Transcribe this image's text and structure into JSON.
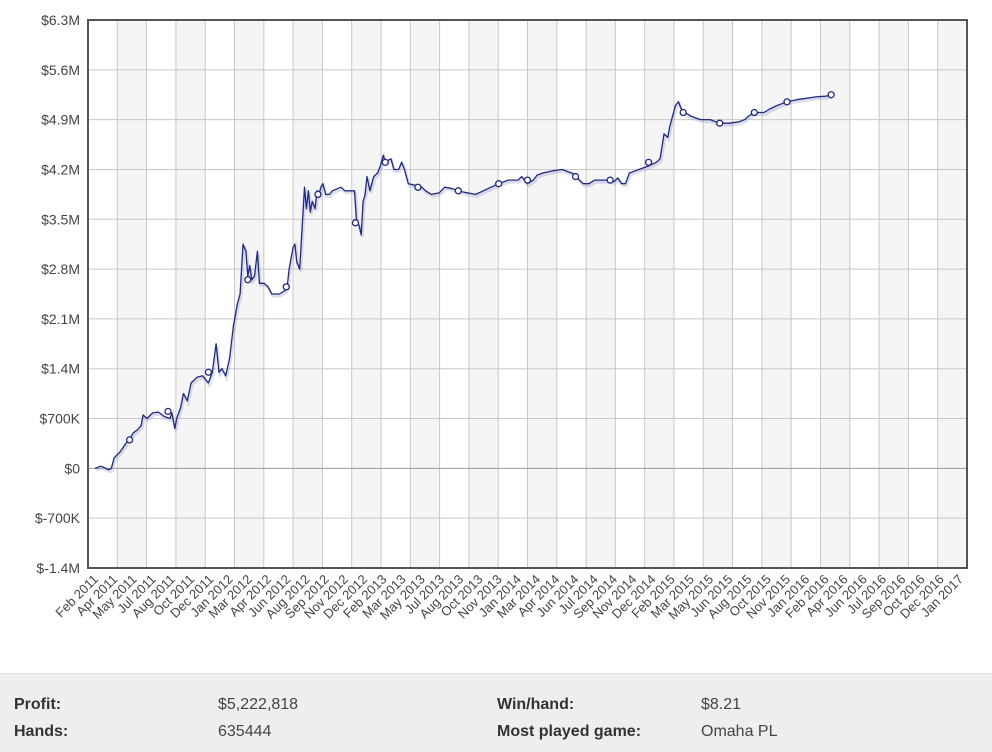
{
  "chart_data": {
    "type": "line",
    "title": "",
    "xlabel": "",
    "ylabel": "",
    "ylim": [
      -1400000,
      6300000
    ],
    "y_ticks": [
      {
        "value": -1400000,
        "label": "$-1.4M"
      },
      {
        "value": -700000,
        "label": "$-700K"
      },
      {
        "value": 0,
        "label": "$0"
      },
      {
        "value": 700000,
        "label": "$700K"
      },
      {
        "value": 1400000,
        "label": "$1.4M"
      },
      {
        "value": 2100000,
        "label": "$2.1M"
      },
      {
        "value": 2800000,
        "label": "$2.8M"
      },
      {
        "value": 3500000,
        "label": "$3.5M"
      },
      {
        "value": 4200000,
        "label": "$4.2M"
      },
      {
        "value": 4900000,
        "label": "$4.9M"
      },
      {
        "value": 5600000,
        "label": "$5.6M"
      },
      {
        "value": 6300000,
        "label": "$6.3M"
      }
    ],
    "x_ticks": [
      "Feb 2011",
      "Apr 2011",
      "May 2011",
      "Jul 2011",
      "Aug 2011",
      "Oct 2011",
      "Dec 2011",
      "Jan 2012",
      "Mar 2012",
      "Apr 2012",
      "Jun 2012",
      "Aug 2012",
      "Sep 2012",
      "Nov 2012",
      "Dec 2012",
      "Feb 2013",
      "Mar 2013",
      "May 2013",
      "Jul 2013",
      "Aug 2013",
      "Oct 2013",
      "Nov 2013",
      "Jan 2014",
      "Mar 2014",
      "Apr 2014",
      "Jun 2014",
      "Jul 2014",
      "Sep 2014",
      "Nov 2014",
      "Dec 2014",
      "Feb 2015",
      "Mar 2015",
      "May 2015",
      "Jun 2015",
      "Aug 2015",
      "Oct 2015",
      "Nov 2015",
      "Jan 2016",
      "Feb 2016",
      "Apr 2016",
      "Jun 2016",
      "Jul 2016",
      "Sep 2016",
      "Oct 2016",
      "Dec 2016",
      "Jan 2017"
    ],
    "grid": true,
    "legend": "none",
    "colors": {
      "line": "#1f2a80",
      "marker_fill": "#ffffff",
      "grid": "#c8c8c8",
      "frame": "#555555",
      "plot_bg_light": "#ffffff",
      "plot_bg_dark": "#f5f5f5"
    },
    "series": [
      {
        "points": [
          [
            0.0,
            0
          ],
          [
            0.3,
            30000
          ],
          [
            0.5,
            10000
          ],
          [
            0.7,
            -20000
          ],
          [
            0.85,
            0
          ],
          [
            1.0,
            150000
          ],
          [
            1.3,
            230000
          ],
          [
            1.6,
            350000
          ],
          [
            1.8,
            420000
          ],
          [
            2.0,
            500000
          ],
          [
            2.2,
            540000
          ],
          [
            2.4,
            600000
          ],
          [
            2.5,
            750000
          ],
          [
            2.7,
            700000
          ],
          [
            3.0,
            780000
          ],
          [
            3.3,
            790000
          ],
          [
            3.6,
            730000
          ],
          [
            3.9,
            700000
          ],
          [
            4.0,
            780000
          ],
          [
            4.15,
            560000
          ],
          [
            4.25,
            700000
          ],
          [
            4.45,
            850000
          ],
          [
            4.6,
            1050000
          ],
          [
            4.8,
            950000
          ],
          [
            5.0,
            1200000
          ],
          [
            5.3,
            1280000
          ],
          [
            5.6,
            1300000
          ],
          [
            5.9,
            1200000
          ],
          [
            6.1,
            1350000
          ],
          [
            6.3,
            1750000
          ],
          [
            6.45,
            1350000
          ],
          [
            6.6,
            1400000
          ],
          [
            6.8,
            1300000
          ],
          [
            7.0,
            1550000
          ],
          [
            7.2,
            2000000
          ],
          [
            7.4,
            2300000
          ],
          [
            7.55,
            2450000
          ],
          [
            7.7,
            3150000
          ],
          [
            7.85,
            3050000
          ],
          [
            7.95,
            2700000
          ],
          [
            8.05,
            2850000
          ],
          [
            8.15,
            2650000
          ],
          [
            8.3,
            2700000
          ],
          [
            8.45,
            3050000
          ],
          [
            8.55,
            2600000
          ],
          [
            8.8,
            2600000
          ],
          [
            9.0,
            2550000
          ],
          [
            9.2,
            2450000
          ],
          [
            9.6,
            2450000
          ],
          [
            9.9,
            2500000
          ],
          [
            10.0,
            2550000
          ],
          [
            10.1,
            2800000
          ],
          [
            10.3,
            3100000
          ],
          [
            10.4,
            3150000
          ],
          [
            10.5,
            2900000
          ],
          [
            10.65,
            2800000
          ],
          [
            10.8,
            3500000
          ],
          [
            10.9,
            3950000
          ],
          [
            11.0,
            3650000
          ],
          [
            11.1,
            3900000
          ],
          [
            11.2,
            3600000
          ],
          [
            11.3,
            3750000
          ],
          [
            11.45,
            3650000
          ],
          [
            11.55,
            3900000
          ],
          [
            11.65,
            3850000
          ],
          [
            11.75,
            3950000
          ],
          [
            11.85,
            4000000
          ],
          [
            12.0,
            3850000
          ],
          [
            12.2,
            3850000
          ],
          [
            12.35,
            3900000
          ],
          [
            12.8,
            3950000
          ],
          [
            13.0,
            3900000
          ],
          [
            13.5,
            3900000
          ],
          [
            13.6,
            3500000
          ],
          [
            13.75,
            3400000
          ],
          [
            13.85,
            3280000
          ],
          [
            13.95,
            3750000
          ],
          [
            14.05,
            3850000
          ],
          [
            14.15,
            4100000
          ],
          [
            14.3,
            3900000
          ],
          [
            14.5,
            4100000
          ],
          [
            14.7,
            4150000
          ],
          [
            14.85,
            4250000
          ],
          [
            15.0,
            4400000
          ],
          [
            15.1,
            4300000
          ],
          [
            15.25,
            4330000
          ],
          [
            15.4,
            4350000
          ],
          [
            15.55,
            4200000
          ],
          [
            15.8,
            4200000
          ],
          [
            15.95,
            4300000
          ],
          [
            16.1,
            4200000
          ],
          [
            16.3,
            4000000
          ],
          [
            16.8,
            3970000
          ],
          [
            17.0,
            3950000
          ],
          [
            17.2,
            3900000
          ],
          [
            17.5,
            3850000
          ],
          [
            17.9,
            3870000
          ],
          [
            18.2,
            3950000
          ],
          [
            18.6,
            3930000
          ],
          [
            18.9,
            3900000
          ],
          [
            19.2,
            3880000
          ],
          [
            19.8,
            3850000
          ],
          [
            20.2,
            3900000
          ],
          [
            20.6,
            3950000
          ],
          [
            21.0,
            4000000
          ],
          [
            21.5,
            4050000
          ],
          [
            22.0,
            4050000
          ],
          [
            22.2,
            4100000
          ],
          [
            22.5,
            4000000
          ],
          [
            22.8,
            4050000
          ],
          [
            23.0,
            4120000
          ],
          [
            23.3,
            4150000
          ],
          [
            23.8,
            4180000
          ],
          [
            24.3,
            4200000
          ],
          [
            24.8,
            4150000
          ],
          [
            25.0,
            4120000
          ],
          [
            25.2,
            4050000
          ],
          [
            25.4,
            4000000
          ],
          [
            25.7,
            4000000
          ],
          [
            26.0,
            4050000
          ],
          [
            26.8,
            4050000
          ],
          [
            27.0,
            4030000
          ],
          [
            27.2,
            4080000
          ],
          [
            27.4,
            4000000
          ],
          [
            27.6,
            4000000
          ],
          [
            27.8,
            4150000
          ],
          [
            28.3,
            4200000
          ],
          [
            28.8,
            4250000
          ],
          [
            29.2,
            4300000
          ],
          [
            29.4,
            4350000
          ],
          [
            29.6,
            4700000
          ],
          [
            29.8,
            4650000
          ],
          [
            29.9,
            4800000
          ],
          [
            30.05,
            4950000
          ],
          [
            30.2,
            5100000
          ],
          [
            30.35,
            5150000
          ],
          [
            30.5,
            5050000
          ],
          [
            30.7,
            5000000
          ],
          [
            31.0,
            4950000
          ],
          [
            31.5,
            4900000
          ],
          [
            32.0,
            4900000
          ],
          [
            32.5,
            4850000
          ],
          [
            33.0,
            4850000
          ],
          [
            33.5,
            4870000
          ],
          [
            33.8,
            4900000
          ],
          [
            34.0,
            4950000
          ],
          [
            34.3,
            5000000
          ],
          [
            34.8,
            5000000
          ],
          [
            35.1,
            5050000
          ],
          [
            35.5,
            5100000
          ],
          [
            36.0,
            5150000
          ],
          [
            36.5,
            5180000
          ],
          [
            37.0,
            5200000
          ],
          [
            37.5,
            5220000
          ],
          [
            38.0,
            5230000
          ],
          [
            38.3,
            5240000
          ]
        ],
        "markers": [
          [
            1.8,
            400000
          ],
          [
            3.8,
            800000
          ],
          [
            5.9,
            1350000
          ],
          [
            7.95,
            2650000
          ],
          [
            9.95,
            2550000
          ],
          [
            11.6,
            3850000
          ],
          [
            13.55,
            3450000
          ],
          [
            15.1,
            4300000
          ],
          [
            16.8,
            3950000
          ],
          [
            18.9,
            3900000
          ],
          [
            21.0,
            4000000
          ],
          [
            22.5,
            4050000
          ],
          [
            25.0,
            4100000
          ],
          [
            26.8,
            4050000
          ],
          [
            28.8,
            4300000
          ],
          [
            30.6,
            5000000
          ],
          [
            32.5,
            4850000
          ],
          [
            34.3,
            5000000
          ],
          [
            36.0,
            5150000
          ],
          [
            38.3,
            5250000
          ]
        ]
      }
    ]
  },
  "stats": {
    "profit_label": "Profit:",
    "profit_value": "$5,222,818",
    "hands_label": "Hands:",
    "hands_value": "635444",
    "winhand_label": "Win/hand:",
    "winhand_value": "$8.21",
    "game_label": "Most played game:",
    "game_value": "Omaha PL"
  }
}
